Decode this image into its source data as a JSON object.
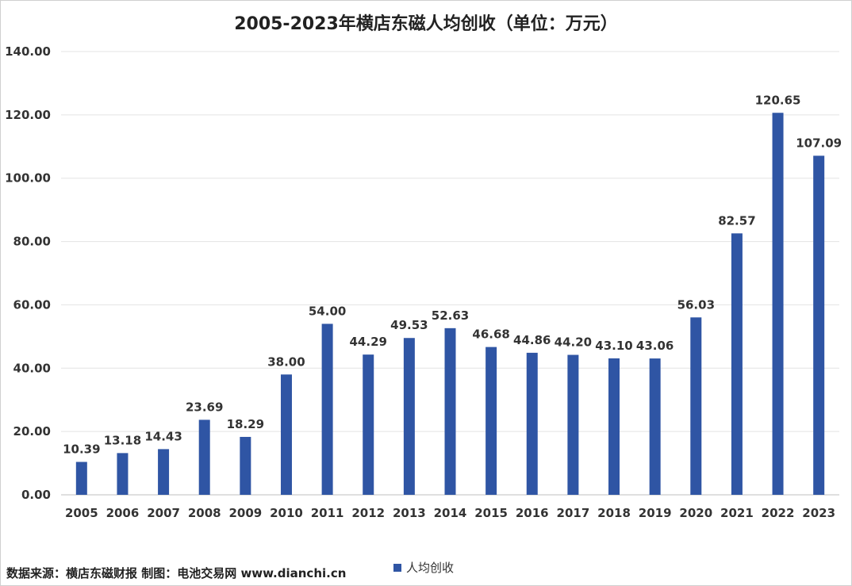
{
  "chart_data": {
    "type": "bar",
    "title": "2005-2023年横店东磁人均创收（单位：万元）",
    "categories": [
      "2005",
      "2006",
      "2007",
      "2008",
      "2009",
      "2010",
      "2011",
      "2012",
      "2013",
      "2014",
      "2015",
      "2016",
      "2017",
      "2018",
      "2019",
      "2020",
      "2021",
      "2022",
      "2023"
    ],
    "series": [
      {
        "name": "人均创收",
        "values": [
          10.39,
          13.18,
          14.43,
          23.69,
          18.29,
          38.0,
          54.0,
          44.29,
          49.53,
          52.63,
          46.68,
          44.86,
          44.2,
          43.1,
          43.06,
          56.03,
          82.57,
          120.65,
          107.09
        ],
        "labels": [
          "10.39",
          "13.18",
          "14.43",
          "23.69",
          "18.29",
          "38.00",
          "54.00",
          "44.29",
          "49.53",
          "52.63",
          "46.68",
          "44.86",
          "44.20",
          "43.10",
          "43.06",
          "56.03",
          "82.57",
          "120.65",
          "107.09"
        ],
        "color": "#2f55a4"
      }
    ],
    "ylim": [
      0,
      140
    ],
    "yticks": [
      "0.00",
      "20.00",
      "40.00",
      "60.00",
      "80.00",
      "100.00",
      "120.00",
      "140.00"
    ],
    "grid": true,
    "legend_position": "bottom"
  },
  "footer": {
    "source": "数据来源：横店东磁财报  制图：电池交易网 www.dianchi.cn"
  }
}
